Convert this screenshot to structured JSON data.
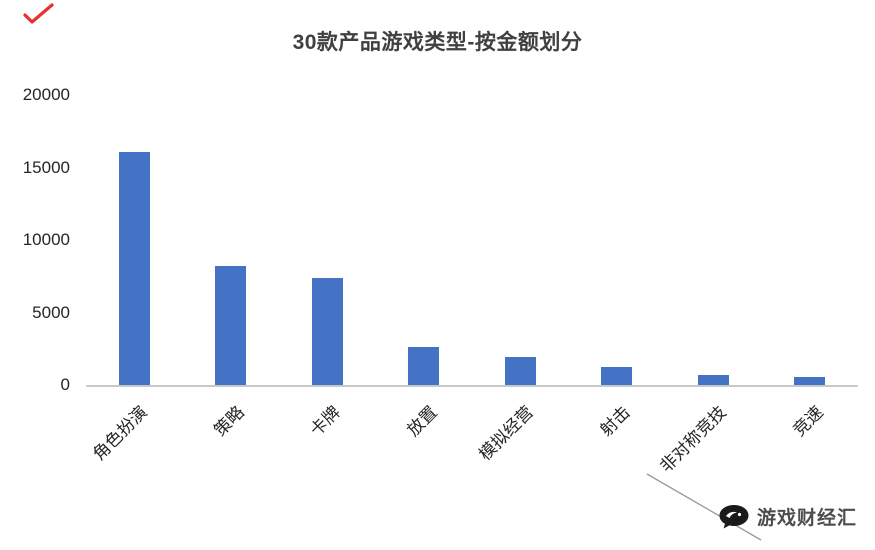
{
  "chart_data": {
    "type": "bar",
    "title": "30款产品游戏类型-按金额划分",
    "categories": [
      "角色扮演",
      "策略",
      "卡牌",
      "放置",
      "模拟经营",
      "射击",
      "非对称竞技",
      "竞速"
    ],
    "values": [
      16100,
      8200,
      7400,
      2650,
      1900,
      1250,
      700,
      550
    ],
    "bar_color": "#4472C4",
    "xlabel": "",
    "ylabel": "",
    "ylim": [
      0,
      20000
    ],
    "yticks": [
      0,
      5000,
      10000,
      15000,
      20000
    ],
    "grid": false,
    "legend": false,
    "axis_line_color": "#c8c8c8"
  },
  "decorations": {
    "red_mark_color": "#e8312a"
  },
  "watermark": {
    "text": "游戏财经汇"
  }
}
